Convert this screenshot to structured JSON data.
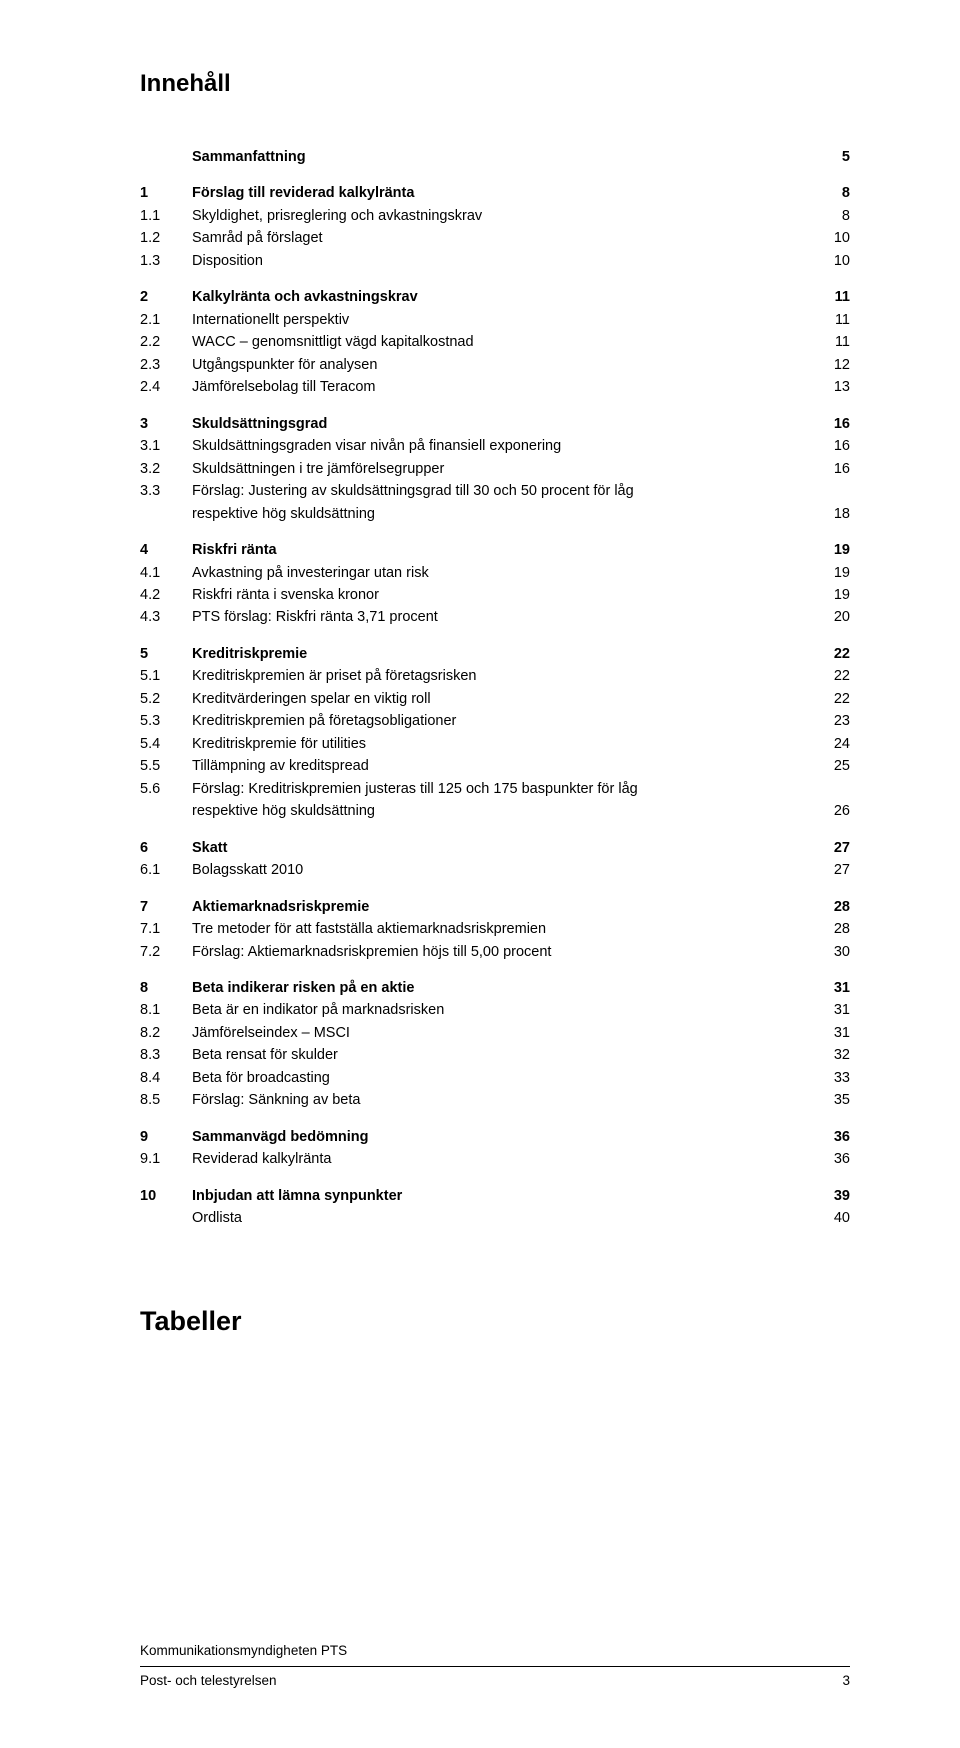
{
  "title": "Innehåll",
  "tablesHeading": "Tabeller",
  "footer": {
    "org": "Kommunikationsmyndigheten PTS",
    "pub": "Post- och telestyrelsen",
    "page": "3"
  },
  "toc": [
    {
      "type": "head",
      "num": "",
      "label": "Sammanfattning",
      "pg": "5"
    },
    {
      "type": "head",
      "num": "1",
      "label": "Förslag till reviderad kalkylränta",
      "pg": "8"
    },
    {
      "type": "sub",
      "num": "1.1",
      "label": "Skyldighet, prisreglering och avkastningskrav",
      "pg": "8"
    },
    {
      "type": "sub",
      "num": "1.2",
      "label": "Samråd på förslaget",
      "pg": "10"
    },
    {
      "type": "sub",
      "num": "1.3",
      "label": "Disposition",
      "pg": "10"
    },
    {
      "type": "head",
      "num": "2",
      "label": "Kalkylränta och avkastningskrav",
      "pg": "11"
    },
    {
      "type": "sub",
      "num": "2.1",
      "label": "Internationellt perspektiv",
      "pg": "11"
    },
    {
      "type": "sub",
      "num": "2.2",
      "label": "WACC – genomsnittligt vägd kapitalkostnad",
      "pg": "11"
    },
    {
      "type": "sub",
      "num": "2.3",
      "label": "Utgångspunkter för analysen",
      "pg": "12"
    },
    {
      "type": "sub",
      "num": "2.4",
      "label": "Jämförelsebolag till Teracom",
      "pg": "13"
    },
    {
      "type": "head",
      "num": "3",
      "label": "Skuldsättningsgrad",
      "pg": "16"
    },
    {
      "type": "sub",
      "num": "3.1",
      "label": "Skuldsättningsgraden visar nivån på finansiell exponering",
      "pg": "16"
    },
    {
      "type": "sub",
      "num": "3.2",
      "label": "Skuldsättningen i tre jämförelsegrupper",
      "pg": "16"
    },
    {
      "type": "wrap",
      "num": "3.3",
      "label1": "Förslag: Justering av skuldsättningsgrad till 30 och 50 procent för låg",
      "label2": "respektive hög skuldsättning",
      "pg": "18"
    },
    {
      "type": "head",
      "num": "4",
      "label": "Riskfri ränta",
      "pg": "19"
    },
    {
      "type": "sub",
      "num": "4.1",
      "label": "Avkastning på investeringar utan risk",
      "pg": "19"
    },
    {
      "type": "sub",
      "num": "4.2",
      "label": "Riskfri ränta i svenska kronor",
      "pg": "19"
    },
    {
      "type": "sub",
      "num": "4.3",
      "label": "PTS förslag: Riskfri ränta 3,71 procent",
      "pg": "20"
    },
    {
      "type": "head",
      "num": "5",
      "label": "Kreditriskpremie",
      "pg": "22"
    },
    {
      "type": "sub",
      "num": "5.1",
      "label": "Kreditriskpremien är priset på företagsrisken",
      "pg": "22"
    },
    {
      "type": "sub",
      "num": "5.2",
      "label": "Kreditvärderingen spelar en viktig roll",
      "pg": "22"
    },
    {
      "type": "sub",
      "num": "5.3",
      "label": "Kreditriskpremien på företagsobligationer",
      "pg": "23"
    },
    {
      "type": "sub",
      "num": "5.4",
      "label": "Kreditriskpremie för utilities",
      "pg": "24"
    },
    {
      "type": "sub",
      "num": "5.5",
      "label": "Tillämpning av kreditspread",
      "pg": "25"
    },
    {
      "type": "wrap",
      "num": "5.6",
      "label1": "Förslag: Kreditriskpremien justeras till 125 och 175 baspunkter för låg",
      "label2": "respektive hög skuldsättning",
      "pg": "26"
    },
    {
      "type": "head",
      "num": "6",
      "label": "Skatt",
      "pg": "27"
    },
    {
      "type": "sub",
      "num": "6.1",
      "label": "Bolagsskatt 2010",
      "pg": "27"
    },
    {
      "type": "head",
      "num": "7",
      "label": "Aktiemarknadsriskpremie",
      "pg": "28"
    },
    {
      "type": "sub",
      "num": "7.1",
      "label": "Tre metoder för att fastställa aktiemarknadsriskpremien",
      "pg": "28"
    },
    {
      "type": "sub",
      "num": "7.2",
      "label": "Förslag: Aktiemarknadsriskpremien höjs till 5,00 procent",
      "pg": "30"
    },
    {
      "type": "head",
      "num": "8",
      "label": "Beta indikerar risken på en aktie",
      "pg": "31"
    },
    {
      "type": "sub",
      "num": "8.1",
      "label": "Beta är en indikator på marknadsrisken",
      "pg": "31"
    },
    {
      "type": "sub",
      "num": "8.2",
      "label": "Jämförelseindex – MSCI",
      "pg": "31"
    },
    {
      "type": "sub",
      "num": "8.3",
      "label": "Beta rensat för skulder",
      "pg": "32"
    },
    {
      "type": "sub",
      "num": "8.4",
      "label": "Beta för broadcasting",
      "pg": "33"
    },
    {
      "type": "sub",
      "num": "8.5",
      "label": "Förslag: Sänkning av beta",
      "pg": "35"
    },
    {
      "type": "head",
      "num": "9",
      "label": "Sammanvägd bedömning",
      "pg": "36"
    },
    {
      "type": "sub",
      "num": "9.1",
      "label": "Reviderad kalkylränta",
      "pg": "36"
    },
    {
      "type": "head",
      "num": "10",
      "label": "Inbjudan att lämna synpunkter",
      "pg": "39"
    },
    {
      "type": "sub",
      "num": "",
      "label": "Ordlista",
      "pg": "40"
    }
  ]
}
